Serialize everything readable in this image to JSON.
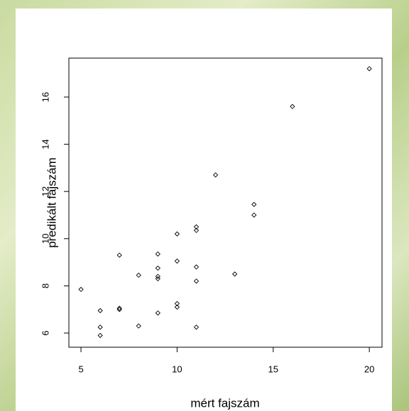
{
  "chart_data": {
    "type": "scatter",
    "x_label": "mért fajszám",
    "y_label": "predikált fajszám",
    "x": [
      5,
      6,
      6,
      6,
      7,
      7,
      7,
      8,
      8,
      9,
      9,
      9,
      9,
      9,
      10,
      10,
      10,
      10,
      11,
      11,
      11,
      11,
      11,
      12,
      13,
      14,
      14,
      16,
      20
    ],
    "y": [
      7.85,
      6.95,
      6.25,
      5.9,
      9.3,
      7.05,
      7.0,
      8.45,
      6.3,
      9.35,
      8.75,
      8.4,
      8.3,
      6.85,
      10.2,
      9.05,
      7.25,
      7.1,
      10.5,
      10.35,
      8.8,
      8.2,
      6.25,
      12.7,
      8.5,
      11.45,
      11.0,
      15.6,
      17.2
    ],
    "color": "#000000",
    "xlim": [
      4.37,
      20.66
    ],
    "ylim": [
      5.4,
      17.65
    ],
    "xticks": [
      5,
      10,
      15,
      20
    ],
    "yticks": [
      6,
      8,
      10,
      12,
      14,
      16
    ]
  }
}
